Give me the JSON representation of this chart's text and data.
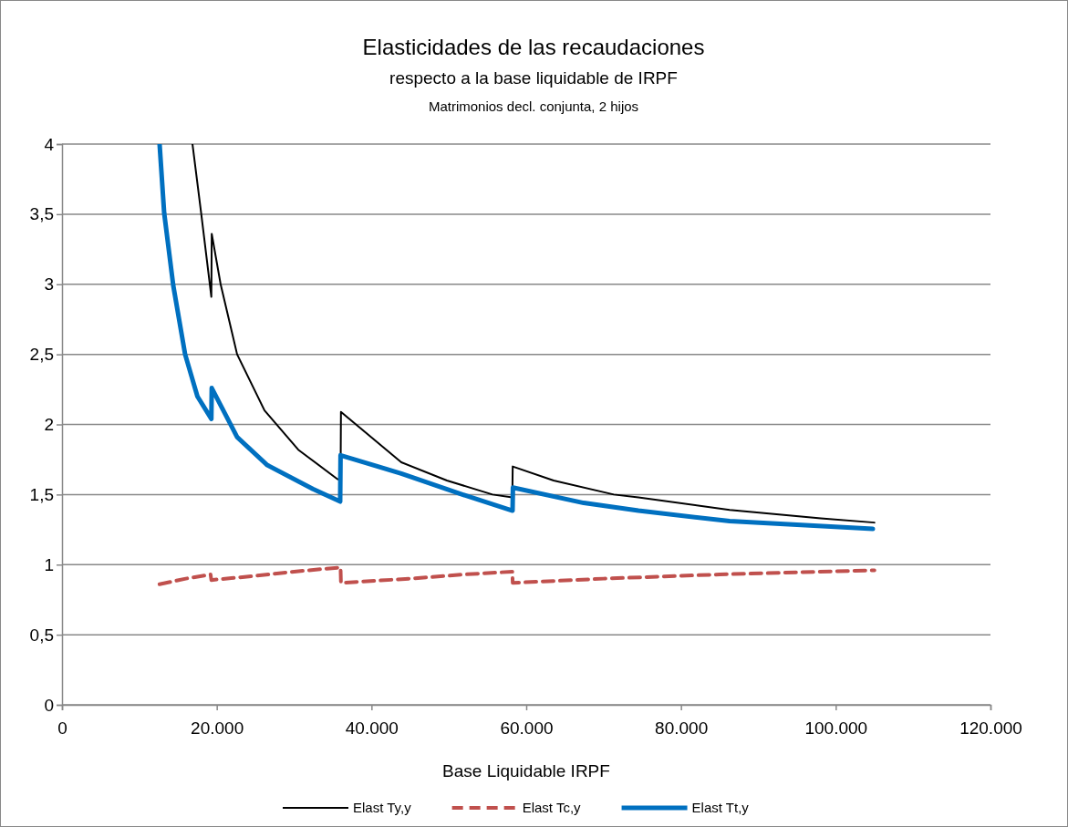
{
  "chart_data": {
    "type": "line",
    "title": "Elasticidades de las recaudaciones",
    "subtitle": "respecto a la base liquidable de IRPF",
    "annotations": [
      "Matrimonios decl. conjunta, 2 hijos"
    ],
    "xlabel": "Base Liquidable IRPF",
    "xlim": [
      0,
      120000
    ],
    "xticks": [
      {
        "value": 0,
        "label": "0"
      },
      {
        "value": 20000,
        "label": "20.000"
      },
      {
        "value": 40000,
        "label": "40.000"
      },
      {
        "value": 60000,
        "label": "60.000"
      },
      {
        "value": 80000,
        "label": "80.000"
      },
      {
        "value": 100000,
        "label": "100.000"
      },
      {
        "value": 120000,
        "label": "120.000"
      }
    ],
    "ylim": [
      0,
      4
    ],
    "yticks": [
      {
        "value": 0,
        "label": "0"
      },
      {
        "value": 0.5,
        "label": "0,5"
      },
      {
        "value": 1,
        "label": "1"
      },
      {
        "value": 1.5,
        "label": "1,5"
      },
      {
        "value": 2,
        "label": "2"
      },
      {
        "value": 2.5,
        "label": "2,5"
      },
      {
        "value": 3,
        "label": "3"
      },
      {
        "value": 3.5,
        "label": "3,5"
      },
      {
        "value": 4,
        "label": "4"
      }
    ],
    "grid": "y",
    "legend": "bottom",
    "marker": "none",
    "series": [
      {
        "name": "Elast Ty,y",
        "color": "#000000",
        "line_style": "solid",
        "x": [
          16860,
          18000,
          19300,
          19350,
          20500,
          22630,
          26170,
          30530,
          35600,
          36000,
          36050,
          43850,
          49750,
          55640,
          58200,
          58250,
          63540,
          71320,
          74500,
          86290,
          98080,
          105000
        ],
        "values": [
          4,
          3.5,
          2.91,
          3.36,
          3.0,
          2.5,
          2.1,
          1.82,
          1.61,
          1.6,
          2.09,
          1.73,
          1.6,
          1.5,
          1.48,
          1.7,
          1.6,
          1.5,
          1.48,
          1.39,
          1.33,
          1.3
        ]
      },
      {
        "name": "Elast Tc,y",
        "color": "#c0504d",
        "line_style": "dashed",
        "x": [
          12600,
          16000,
          19200,
          19300,
          25000,
          30000,
          36000,
          36050,
          45000,
          52000,
          58200,
          58250,
          70000,
          85000,
          105000
        ],
        "values": [
          0.86,
          0.9,
          0.93,
          0.89,
          0.92,
          0.95,
          0.98,
          0.87,
          0.9,
          0.93,
          0.95,
          0.87,
          0.9,
          0.93,
          0.96
        ]
      },
      {
        "name": "Elast Tt,y",
        "color": "#0070c0",
        "line_style": "solid",
        "x": [
          12610,
          13200,
          14380,
          15910,
          17500,
          19300,
          19350,
          22630,
          26520,
          32420,
          35950,
          36000,
          43850,
          51750,
          58230,
          58280,
          67430,
          74500,
          86290,
          104800
        ],
        "values": [
          4,
          3.51,
          2.99,
          2.5,
          2.2,
          2.04,
          2.26,
          1.91,
          1.71,
          1.54,
          1.45,
          1.78,
          1.65,
          1.5,
          1.385,
          1.55,
          1.44,
          1.385,
          1.31,
          1.255
        ]
      }
    ]
  }
}
